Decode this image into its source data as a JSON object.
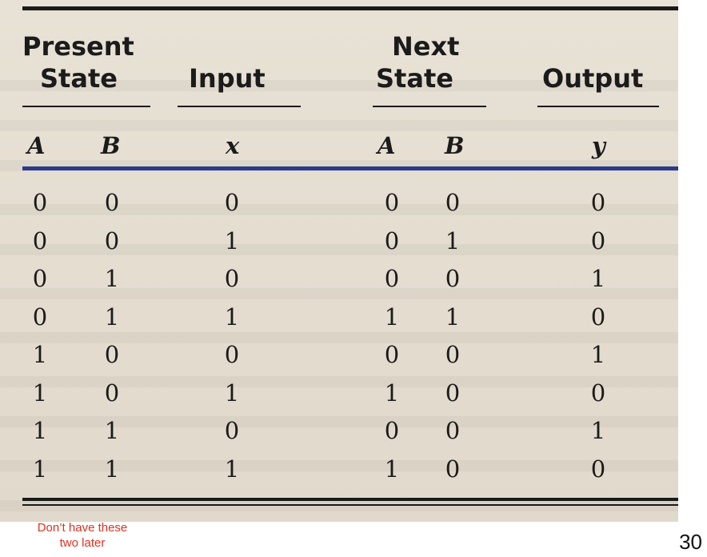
{
  "table": {
    "headers": {
      "present_state": [
        "Present",
        "State"
      ],
      "input": "Input",
      "next_state": [
        "Next",
        "State"
      ],
      "output": "Output"
    },
    "subheaders": {
      "present_a": "A",
      "present_b": "B",
      "input_x": "x",
      "next_a": "A",
      "next_b": "B",
      "output_y": "y"
    },
    "rows": [
      [
        "0",
        "0",
        "0",
        "0",
        "0",
        "0"
      ],
      [
        "0",
        "0",
        "1",
        "0",
        "1",
        "0"
      ],
      [
        "0",
        "1",
        "0",
        "0",
        "0",
        "1"
      ],
      [
        "0",
        "1",
        "1",
        "1",
        "1",
        "0"
      ],
      [
        "1",
        "0",
        "0",
        "0",
        "0",
        "1"
      ],
      [
        "1",
        "0",
        "1",
        "1",
        "0",
        "0"
      ],
      [
        "1",
        "1",
        "0",
        "0",
        "0",
        "1"
      ],
      [
        "1",
        "1",
        "1",
        "1",
        "0",
        "0"
      ]
    ]
  },
  "annotation": {
    "line1": "Don’t have these",
    "line2": "two later",
    "color": "#e0301e"
  },
  "page_number": "30",
  "accent_rule_color": "#2a3a8c"
}
